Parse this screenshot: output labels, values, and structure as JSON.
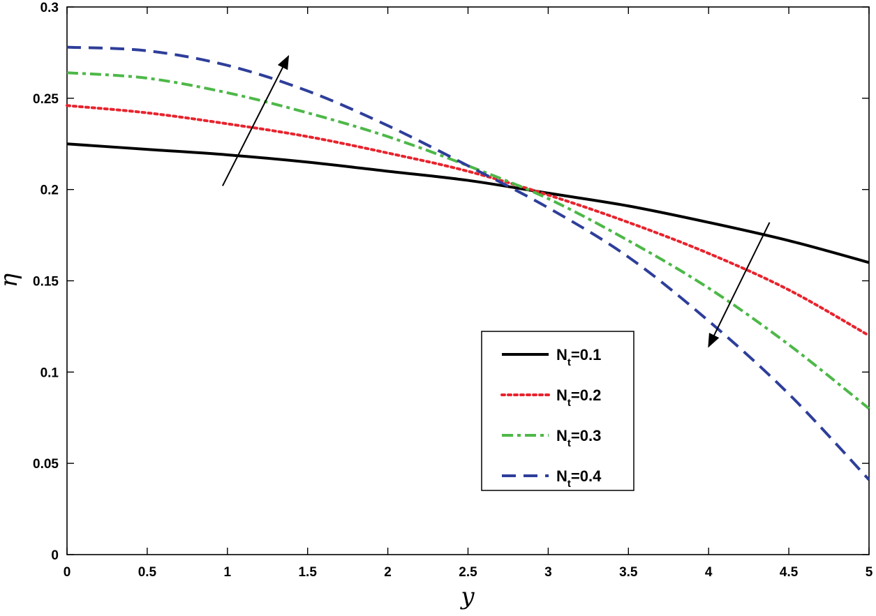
{
  "chart_data": {
    "type": "line",
    "title": "",
    "xlabel": "y",
    "ylabel": "η",
    "xlim": [
      0,
      5
    ],
    "ylim": [
      0,
      0.3
    ],
    "xticks": [
      0,
      0.5,
      1,
      1.5,
      2,
      2.5,
      3,
      3.5,
      4,
      4.5,
      5
    ],
    "xtick_labels": [
      "0",
      "0.5",
      "1",
      "1.5",
      "2",
      "2.5",
      "3",
      "3.5",
      "4",
      "4.5",
      "5"
    ],
    "yticks": [
      0,
      0.05,
      0.1,
      0.15,
      0.2,
      0.25,
      0.3
    ],
    "ytick_labels": [
      "0",
      "0.05",
      "0.1",
      "0.15",
      "0.2",
      "0.25",
      "0.3"
    ],
    "grid": false,
    "legend_position": "center-right",
    "x": [
      0,
      0.5,
      1,
      1.5,
      2,
      2.5,
      3,
      3.5,
      4,
      4.5,
      5
    ],
    "series": [
      {
        "legend_base": "N",
        "legend_sub": "t",
        "legend_value": "=0.1",
        "color": "#000000",
        "dash": "solid",
        "values": [
          0.225,
          0.222,
          0.219,
          0.215,
          0.21,
          0.205,
          0.198,
          0.191,
          0.182,
          0.172,
          0.16
        ]
      },
      {
        "legend_base": "N",
        "legend_sub": "t",
        "legend_value": "=0.2",
        "color": "#e8232d",
        "dash": "dotted",
        "values": [
          0.246,
          0.242,
          0.236,
          0.229,
          0.22,
          0.21,
          0.197,
          0.182,
          0.165,
          0.145,
          0.12
        ]
      },
      {
        "legend_base": "N",
        "legend_sub": "t",
        "legend_value": "=0.3",
        "color": "#4db848",
        "dash": "dashdot",
        "values": [
          0.264,
          0.261,
          0.253,
          0.242,
          0.229,
          0.213,
          0.195,
          0.172,
          0.146,
          0.115,
          0.08
        ]
      },
      {
        "legend_base": "N",
        "legend_sub": "t",
        "legend_value": "=0.4",
        "color": "#2e3e9a",
        "dash": "dashed",
        "values": [
          0.278,
          0.276,
          0.268,
          0.254,
          0.235,
          0.213,
          0.19,
          0.163,
          0.128,
          0.088,
          0.041
        ]
      }
    ],
    "annotations": [
      {
        "type": "arrow",
        "from": [
          0.97,
          0.202
        ],
        "to": [
          1.38,
          0.273
        ],
        "meaning": "increasing"
      },
      {
        "type": "arrow",
        "from": [
          4.38,
          0.182
        ],
        "to": [
          4.0,
          0.114
        ],
        "meaning": "decreasing"
      }
    ]
  }
}
